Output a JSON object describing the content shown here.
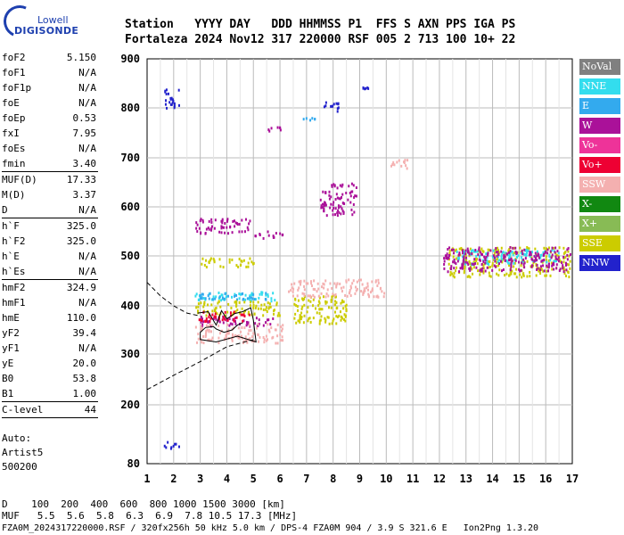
{
  "header": {
    "row1": "Station   YYYY DAY   DDD HHMMSS P1  FFS S AXN PPS IGA PS",
    "row2": "Fortaleza 2024 Nov12 317 220000 RSF 005 2 713 100 10+ 22"
  },
  "logo": {
    "line1": "Lowell",
    "line2": "DIGISONDE"
  },
  "params": [
    {
      "name": "foF2",
      "value": "5.150"
    },
    {
      "name": "foF1",
      "value": "N/A"
    },
    {
      "name": "foF1p",
      "value": "N/A"
    },
    {
      "name": "foE",
      "value": "N/A"
    },
    {
      "name": "foEp",
      "value": "0.53"
    },
    {
      "name": "fxI",
      "value": "7.95"
    },
    {
      "name": "foEs",
      "value": "N/A"
    },
    {
      "name": "fmin",
      "value": "3.40"
    },
    {
      "sep": true
    },
    {
      "name": "MUF(D)",
      "value": "17.33"
    },
    {
      "name": "M(D)",
      "value": "3.37"
    },
    {
      "name": "D",
      "value": "N/A"
    },
    {
      "sep": true
    },
    {
      "name": "h`F",
      "value": "325.0"
    },
    {
      "name": "h`F2",
      "value": "325.0"
    },
    {
      "name": "h`E",
      "value": "N/A"
    },
    {
      "name": "h`Es",
      "value": "N/A"
    },
    {
      "sep": true
    },
    {
      "name": "hmF2",
      "value": "324.9"
    },
    {
      "name": "hmF1",
      "value": "N/A"
    },
    {
      "name": "hmE",
      "value": "110.0"
    },
    {
      "name": "yF2",
      "value": "39.4"
    },
    {
      "name": "yF1",
      "value": "N/A"
    },
    {
      "name": "yE",
      "value": "20.0"
    },
    {
      "name": "B0",
      "value": "53.8"
    },
    {
      "name": "B1",
      "value": "1.00"
    },
    {
      "sep": true
    },
    {
      "name": "C-level",
      "value": "44"
    },
    {
      "sep": true
    }
  ],
  "auto": {
    "line1": "Auto:",
    "line2": "Artist5",
    "line3": "500200"
  },
  "legend": [
    {
      "label": "NoVal",
      "color": "#808080"
    },
    {
      "label": "NNE",
      "color": "#33ddee"
    },
    {
      "label": "E",
      "color": "#33aaee"
    },
    {
      "label": "W",
      "color": "#aa1199"
    },
    {
      "label": "Vo-",
      "color": "#ee3399"
    },
    {
      "label": "Vo+",
      "color": "#ee0033"
    },
    {
      "label": "SSW",
      "color": "#f4b0b0"
    },
    {
      "label": "X-",
      "color": "#118811"
    },
    {
      "label": "X+",
      "color": "#88bb55"
    },
    {
      "label": "SSE",
      "color": "#cccc00"
    },
    {
      "label": "NNW",
      "color": "#2222cc"
    }
  ],
  "footer": {
    "row1": "D    100  200  400  600  800 1000 1500 3000 [km]",
    "row2": "MUF   5.5  5.6  5.8  6.3  6.9  7.8 10.5 17.3 [MHz]",
    "row3": "FZA0M_2024317220000.RSF / 320fx256h 50 kHz 5.0 km / DPS-4 FZA0M 904 / 3.9 S 321.6 E   Ion2Png 1.3.20"
  },
  "chart_data": {
    "type": "scatter",
    "xlim": [
      1,
      17
    ],
    "ylim": [
      80,
      900
    ],
    "x_ticks": [
      1,
      2,
      3,
      4,
      5,
      6,
      7,
      8,
      9,
      10,
      11,
      12,
      13,
      14,
      15,
      16,
      17
    ],
    "y_ticks": [
      80,
      200,
      300,
      400,
      500,
      600,
      700,
      800,
      900
    ],
    "grid": true,
    "clusters": [
      {
        "legend": "NNW",
        "x": [
          1.6,
          2.2
        ],
        "y": [
          800,
          840
        ]
      },
      {
        "legend": "NNW",
        "x": [
          1.6,
          2.2
        ],
        "y": [
          112,
          128
        ]
      },
      {
        "legend": "W",
        "x": [
          2.8,
          5.0
        ],
        "y": [
          548,
          578
        ]
      },
      {
        "legend": "W",
        "x": [
          5.0,
          6.1
        ],
        "y": [
          538,
          552
        ]
      },
      {
        "legend": "W",
        "x": [
          7.5,
          8.9
        ],
        "y": [
          585,
          650
        ]
      },
      {
        "legend": "W",
        "x": [
          3.0,
          5.8
        ],
        "y": [
          360,
          380
        ]
      },
      {
        "legend": "NNE",
        "x": [
          2.7,
          5.8
        ],
        "y": [
          412,
          430
        ]
      },
      {
        "legend": "E",
        "x": [
          2.7,
          5.5
        ],
        "y": [
          415,
          428
        ]
      },
      {
        "legend": "E",
        "x": [
          6.8,
          7.4
        ],
        "y": [
          775,
          782
        ]
      },
      {
        "legend": "SSE",
        "x": [
          2.8,
          6.0
        ],
        "y": [
          382,
          412
        ]
      },
      {
        "legend": "SSE",
        "x": [
          3.0,
          5.0
        ],
        "y": [
          480,
          498
        ]
      },
      {
        "legend": "SSE",
        "x": [
          6.5,
          8.5
        ],
        "y": [
          365,
          425
        ]
      },
      {
        "legend": "SSW",
        "x": [
          2.8,
          6.1
        ],
        "y": [
          325,
          365
        ]
      },
      {
        "legend": "SSW",
        "x": [
          6.3,
          9.9
        ],
        "y": [
          420,
          455
        ]
      },
      {
        "legend": "SSW",
        "x": [
          10.1,
          10.8
        ],
        "y": [
          680,
          700
        ]
      },
      {
        "legend": "Vo+",
        "x": [
          2.9,
          4.9
        ],
        "y": [
          370,
          390
        ]
      },
      {
        "legend": "NNW",
        "x": [
          7.6,
          8.3
        ],
        "y": [
          795,
          815
        ]
      },
      {
        "legend": "NNW",
        "x": [
          9.1,
          9.3
        ],
        "y": [
          840,
          845
        ]
      },
      {
        "legend": "SSE",
        "x": [
          12.3,
          16.9
        ],
        "y": [
          460,
          520
        ]
      },
      {
        "legend": "NNE",
        "x": [
          12.6,
          16.5
        ],
        "y": [
          485,
          515
        ]
      },
      {
        "legend": "W",
        "x": [
          12.1,
          16.9
        ],
        "y": [
          470,
          520
        ]
      },
      {
        "legend": "W",
        "x": [
          5.2,
          6.0
        ],
        "y": [
          755,
          765
        ]
      }
    ],
    "profile_solid": [
      [
        2.9,
        385
      ],
      [
        3.3,
        388
      ],
      [
        3.6,
        360
      ],
      [
        3.8,
        390
      ],
      [
        4.0,
        373
      ],
      [
        4.3,
        384
      ],
      [
        4.6,
        388
      ],
      [
        4.9,
        396
      ],
      [
        5.0,
        370
      ],
      [
        5.1,
        325
      ],
      [
        4.4,
        337
      ],
      [
        3.6,
        325
      ],
      [
        3.0,
        330
      ],
      [
        3.0,
        345
      ],
      [
        3.2,
        355
      ],
      [
        3.5,
        357
      ],
      [
        3.6,
        352
      ],
      [
        3.9,
        345
      ],
      [
        4.2,
        350
      ],
      [
        4.4,
        360
      ],
      [
        4.6,
        365
      ]
    ],
    "profile_dashed_upper": [
      [
        1.0,
        447
      ],
      [
        1.5,
        420
      ],
      [
        2.0,
        400
      ],
      [
        2.5,
        385
      ],
      [
        2.9,
        380
      ]
    ],
    "profile_dashed_lower": [
      [
        1.0,
        230
      ],
      [
        2.0,
        258
      ],
      [
        3.0,
        285
      ],
      [
        4.0,
        315
      ],
      [
        5.0,
        330
      ]
    ]
  }
}
